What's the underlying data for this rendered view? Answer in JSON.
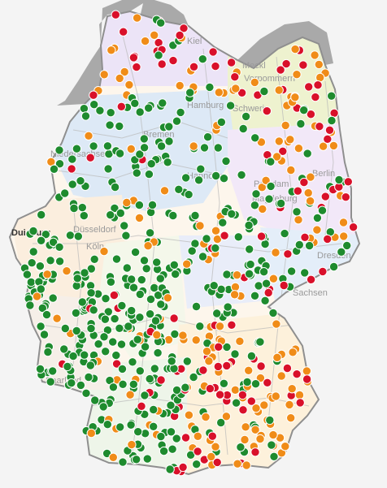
{
  "map": {
    "colors": {
      "background": "#f4f4f4",
      "outside": "#a9a9a9",
      "border": "#8f8f8f",
      "green": "#1e8b2e",
      "orange": "#f08c18",
      "red": "#d9102a"
    },
    "labels": {
      "kiel": "Kiel",
      "mecklenburg": "Meckl",
      "vorpommern": "Vorpommern",
      "hamburg": "Hamburg",
      "schwerin": "Schwerin",
      "bremen": "Bremen",
      "niedersachsen": "Niedersachsen",
      "hannover": "Hannover",
      "potsdam": "Potsdam",
      "berlin": "Berlin",
      "magdeburg": "Magdeburg",
      "duisburg": "Duisburg",
      "duesseldorf": "Düsseldorf",
      "koeln": "Köln",
      "dresden": "Dresden",
      "sachsen": "Sachsen",
      "saarland": "Saarland"
    },
    "markers": {
      "legend": [
        "green",
        "orange",
        "red"
      ]
    }
  }
}
